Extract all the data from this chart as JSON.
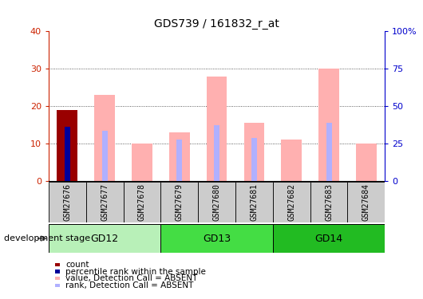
{
  "title": "GDS739 / 161832_r_at",
  "samples": [
    "GSM27676",
    "GSM27677",
    "GSM27678",
    "GSM27679",
    "GSM27680",
    "GSM27681",
    "GSM27682",
    "GSM27683",
    "GSM27684"
  ],
  "value_absent": [
    19.0,
    23.0,
    10.0,
    13.0,
    28.0,
    15.5,
    11.0,
    30.0,
    10.0
  ],
  "rank_absent": [
    14.0,
    13.5,
    null,
    11.0,
    15.0,
    11.5,
    null,
    15.5,
    null
  ],
  "count_val": [
    19.0,
    null,
    null,
    null,
    null,
    null,
    null,
    null,
    null
  ],
  "pct_rank_val": [
    14.5,
    null,
    null,
    null,
    null,
    null,
    null,
    null,
    null
  ],
  "ylim_left": [
    0,
    40
  ],
  "ylim_right": [
    0,
    100
  ],
  "yticks_left": [
    0,
    10,
    20,
    30,
    40
  ],
  "yticks_right": [
    0,
    25,
    50,
    75,
    100
  ],
  "ytick_labels_right": [
    "0",
    "25",
    "50",
    "75",
    "100%"
  ],
  "stages": [
    {
      "label": "GD12",
      "start": 0,
      "end": 3,
      "color": "#b8f0b8"
    },
    {
      "label": "GD13",
      "start": 3,
      "end": 6,
      "color": "#44dd44"
    },
    {
      "label": "GD14",
      "start": 6,
      "end": 9,
      "color": "#22bb22"
    }
  ],
  "color_value_absent": "#ffb0b0",
  "color_rank_absent": "#b0b0ff",
  "color_count": "#990000",
  "color_pct_rank": "#000099",
  "bar_width": 0.55,
  "rank_bar_width": 0.15,
  "tick_label_color": "#cc2200",
  "right_axis_color": "#0000cc",
  "bg_xticklabel": "#cccccc",
  "grid_color": "#333333",
  "development_stage_label": "development stage"
}
